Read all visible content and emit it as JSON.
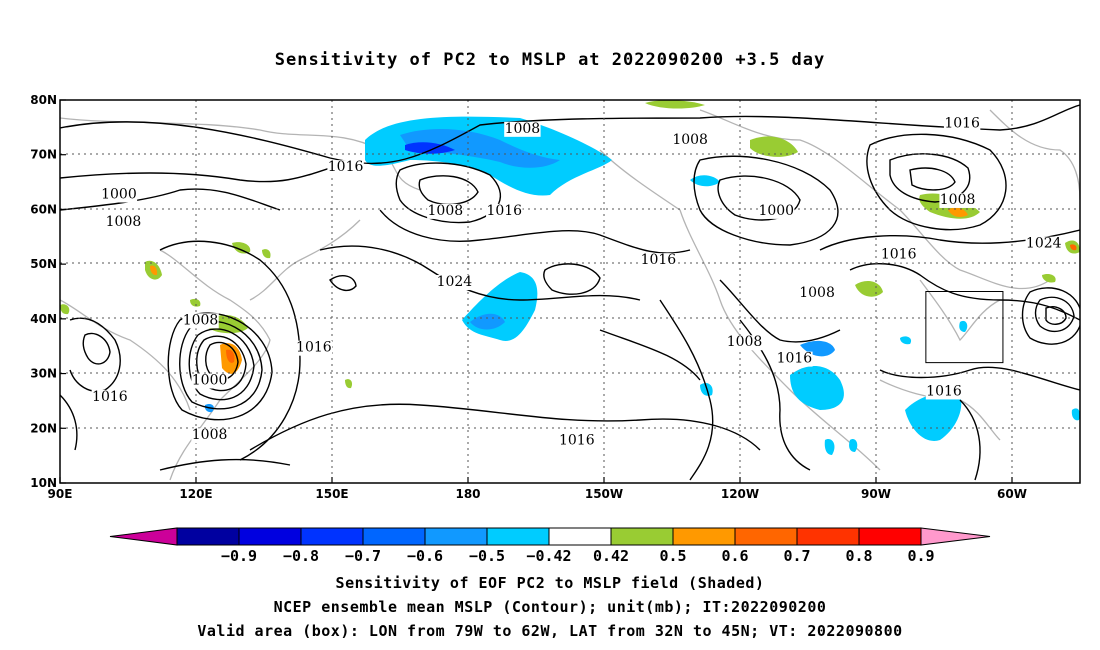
{
  "title": "Sensitivity of PC2 to MSLP at 2022090200 +3.5 day",
  "axes": {
    "lon_ticks": [
      {
        "lon": 90,
        "label": "90E"
      },
      {
        "lon": 120,
        "label": "120E"
      },
      {
        "lon": 150,
        "label": "150E"
      },
      {
        "lon": 180,
        "label": "180"
      },
      {
        "lon": 210,
        "label": "150W"
      },
      {
        "lon": 240,
        "label": "120W"
      },
      {
        "lon": 270,
        "label": "90W"
      },
      {
        "lon": 300,
        "label": "60W"
      }
    ],
    "lat_ticks": [
      {
        "lat": 80,
        "label": "80N"
      },
      {
        "lat": 70,
        "label": "70N"
      },
      {
        "lat": 60,
        "label": "60N"
      },
      {
        "lat": 50,
        "label": "50N"
      },
      {
        "lat": 40,
        "label": "40N"
      },
      {
        "lat": 30,
        "label": "30N"
      },
      {
        "lat": 20,
        "label": "20N"
      },
      {
        "lat": 10,
        "label": "10N"
      }
    ],
    "lon_range": [
      90,
      315
    ],
    "lat_range": [
      10,
      80
    ],
    "grid": "dotted"
  },
  "valid_box": {
    "lon": [
      281,
      298
    ],
    "lat": [
      32,
      45
    ]
  },
  "contour_labels": [
    {
      "text": "1008",
      "lon": 192,
      "lat": 74
    },
    {
      "text": "1008",
      "lon": 229,
      "lat": 72
    },
    {
      "text": "1016",
      "lon": 289,
      "lat": 75
    },
    {
      "text": "1016",
      "lon": 153,
      "lat": 67
    },
    {
      "text": "1000",
      "lon": 103,
      "lat": 62
    },
    {
      "text": "1008",
      "lon": 104,
      "lat": 57
    },
    {
      "text": "1008",
      "lon": 175,
      "lat": 59
    },
    {
      "text": "1016",
      "lon": 188,
      "lat": 59
    },
    {
      "text": "1000",
      "lon": 248,
      "lat": 59
    },
    {
      "text": "1008",
      "lon": 288,
      "lat": 61
    },
    {
      "text": "1024",
      "lon": 307,
      "lat": 53
    },
    {
      "text": "1016",
      "lon": 275,
      "lat": 51
    },
    {
      "text": "1016",
      "lon": 222,
      "lat": 50
    },
    {
      "text": "1008",
      "lon": 257,
      "lat": 44
    },
    {
      "text": "1024",
      "lon": 177,
      "lat": 46
    },
    {
      "text": "1008",
      "lon": 121,
      "lat": 39
    },
    {
      "text": "1016",
      "lon": 146,
      "lat": 34
    },
    {
      "text": "1008",
      "lon": 241,
      "lat": 35
    },
    {
      "text": "1016",
      "lon": 252,
      "lat": 32
    },
    {
      "text": "1000",
      "lon": 123,
      "lat": 28
    },
    {
      "text": "1016",
      "lon": 101,
      "lat": 25
    },
    {
      "text": "1016",
      "lon": 285,
      "lat": 26
    },
    {
      "text": "1016",
      "lon": 204,
      "lat": 17
    },
    {
      "text": "1008",
      "lon": 123,
      "lat": 18
    }
  ],
  "colorbar": {
    "colors": [
      "#cc0099",
      "#0000a0",
      "#0000e0",
      "#0033ff",
      "#0066ff",
      "#1199ff",
      "#00ccff",
      "#ffffff",
      "#99cc33",
      "#ff9900",
      "#ff6600",
      "#ff3300",
      "#ff0000",
      "#ff99cc"
    ],
    "labels": [
      "−0.9",
      "−0.8",
      "−0.7",
      "−0.6",
      "−0.5",
      "−0.42",
      "0.42",
      "0.5",
      "0.6",
      "0.7",
      "0.8",
      "0.9"
    ]
  },
  "captions": [
    "Sensitivity of EOF PC2 to MSLP field (Shaded)",
    "NCEP ensemble mean MSLP (Contour); unit(mb); IT:2022090200",
    "Valid area (box): LON from 79W to 62W, LAT from 32N to 45N; VT: 2022090800"
  ]
}
